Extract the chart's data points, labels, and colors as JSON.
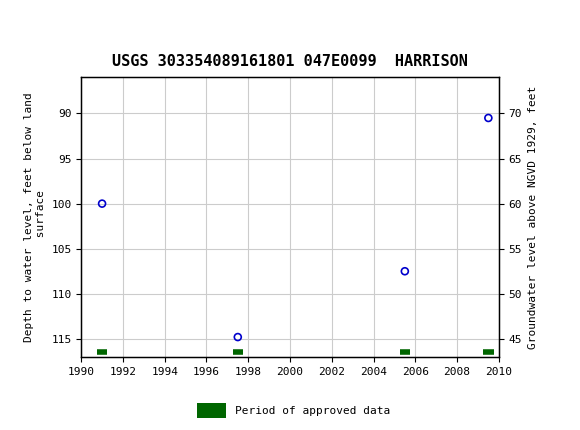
{
  "title": "USGS 303354089161801 047E0099  HARRISON",
  "ylabel_left": "Depth to water level, feet below land\n surface",
  "ylabel_right": "Groundwater level above NGVD 1929, feet",
  "header_color": "#006633",
  "background_color": "#ffffff",
  "plot_bg_color": "#ffffff",
  "grid_color": "#cccccc",
  "data_years": [
    1991.0,
    1997.5,
    2005.5,
    2009.5
  ],
  "data_depth": [
    100.0,
    114.8,
    107.5,
    90.5
  ],
  "approved_years": [
    1991.0,
    1997.5,
    2005.5,
    2009.5
  ],
  "marker_color": "#0000cc",
  "approved_color": "#006600",
  "xlim": [
    1990,
    2010
  ],
  "xticks": [
    1990,
    1992,
    1994,
    1996,
    1998,
    2000,
    2002,
    2004,
    2006,
    2008,
    2010
  ],
  "ylim_left_top": 86,
  "ylim_left_bottom": 117,
  "ylim_left_ticks": [
    90,
    95,
    100,
    105,
    110,
    115
  ],
  "ylim_right_top": 74,
  "ylim_right_bottom": 43,
  "ylim_right_ticks": [
    45,
    50,
    55,
    60,
    65,
    70
  ],
  "legend_label": "Period of approved data",
  "font_family": "monospace",
  "title_fontsize": 11,
  "tick_fontsize": 8,
  "label_fontsize": 8
}
